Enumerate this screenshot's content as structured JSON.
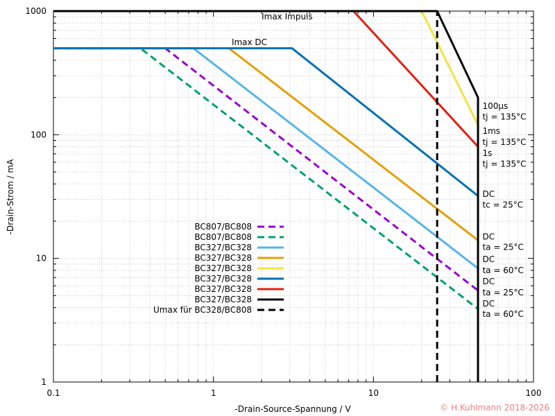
{
  "chart_data": {
    "type": "line",
    "xscale": "log",
    "yscale": "log",
    "xlim": [
      0.1,
      100
    ],
    "ylim": [
      1,
      1000
    ],
    "grid": true,
    "legend_position": "center-left",
    "xlabel": "-Drain-Source-Spannung / V",
    "ylabel": "-Drain-Strom / mA",
    "x_ticks": [
      {
        "value": 0.1,
        "label": "0.1"
      },
      {
        "value": 1,
        "label": "1"
      },
      {
        "value": 10,
        "label": "10"
      },
      {
        "value": 100,
        "label": "100"
      }
    ],
    "y_ticks": [
      {
        "value": 1,
        "label": "1"
      },
      {
        "value": 10,
        "label": "10"
      },
      {
        "value": 100,
        "label": "100"
      },
      {
        "value": 1000,
        "label": "1000"
      }
    ],
    "series": [
      {
        "name": "BC807/BC808",
        "color": "#9400d3",
        "dash": true,
        "x": [
          0.1,
          0.5,
          45
        ],
        "y": [
          500,
          500,
          5.5
        ]
      },
      {
        "name": "BC807/BC808",
        "color": "#009e73",
        "dash": true,
        "x": [
          0.1,
          0.35,
          45
        ],
        "y": [
          500,
          500,
          3.9
        ]
      },
      {
        "name": "BC327/BC328",
        "color": "#56b4e9",
        "dash": false,
        "x": [
          0.1,
          0.75,
          45
        ],
        "y": [
          500,
          500,
          8.3
        ]
      },
      {
        "name": "BC327/BC328",
        "color": "#e69f00",
        "dash": false,
        "x": [
          1.25,
          45
        ],
        "y": [
          500,
          14
        ]
      },
      {
        "name": "BC327/BC328",
        "color": "#f0e442",
        "dash": false,
        "x": [
          20,
          45
        ],
        "y": [
          1000,
          120
        ]
      },
      {
        "name": "BC327/BC328",
        "color": "#0072b2",
        "dash": false,
        "x": [
          0.1,
          3.1,
          45
        ],
        "y": [
          500,
          500,
          32
        ]
      },
      {
        "name": "BC327/BC328",
        "color": "#e51e10",
        "dash": false,
        "x": [
          7.5,
          45
        ],
        "y": [
          1000,
          80
        ]
      },
      {
        "name": "BC327/BC328",
        "color": "#000000",
        "dash": false,
        "x": [
          0.1,
          25,
          45,
          45
        ],
        "y": [
          1000,
          1000,
          200,
          1
        ]
      },
      {
        "name": "Umax für BC328/BC808",
        "color": "#000000",
        "dash": true,
        "x": [
          25,
          25
        ],
        "y": [
          1,
          1000
        ]
      }
    ],
    "annotations": [
      {
        "text": "Imax Impuls",
        "x": 2.0,
        "y": 900
      },
      {
        "text": "Imax DC",
        "x": 1.3,
        "y": 560
      },
      {
        "text": "100µs",
        "x": 48,
        "y": 170
      },
      {
        "text": "tj = 135°C",
        "x": 48,
        "y": 140
      },
      {
        "text": "1ms",
        "x": 48,
        "y": 107
      },
      {
        "text": "tj = 135°C",
        "x": 48,
        "y": 87
      },
      {
        "text": "1s",
        "x": 48,
        "y": 71
      },
      {
        "text": "tj = 135°C",
        "x": 48,
        "y": 58
      },
      {
        "text": "DC",
        "x": 48,
        "y": 33
      },
      {
        "text": "tc = 25°C",
        "x": 48,
        "y": 27
      },
      {
        "text": "DC",
        "x": 48,
        "y": 15
      },
      {
        "text": "ta = 25°C",
        "x": 48,
        "y": 12.3
      },
      {
        "text": "DC",
        "x": 48,
        "y": 9.8
      },
      {
        "text": "ta = 60°C",
        "x": 48,
        "y": 8.0
      },
      {
        "text": "DC",
        "x": 48,
        "y": 6.5
      },
      {
        "text": "ta = 25°C",
        "x": 48,
        "y": 5.3
      },
      {
        "text": "DC",
        "x": 48,
        "y": 4.3
      },
      {
        "text": "ta = 60°C",
        "x": 48,
        "y": 3.55
      }
    ],
    "copyright": "© H.Kuhlmann 2018-2026"
  }
}
